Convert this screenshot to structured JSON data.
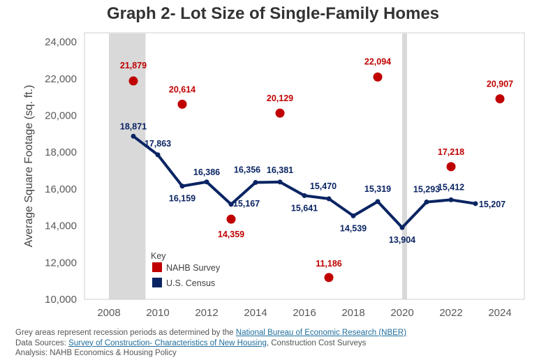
{
  "title": "Graph 2- Lot Size of Single-Family Homes",
  "chart_data": {
    "type": "line",
    "title": "Graph 2- Lot Size of Single-Family Homes",
    "xlabel": "",
    "ylabel": "Average Square Footage (sq. ft.)",
    "xlim": [
      2007,
      2025
    ],
    "ylim": [
      10000,
      24500
    ],
    "x_ticks": [
      "2008",
      "2010",
      "2012",
      "2014",
      "2016",
      "2018",
      "2020",
      "2022",
      "2024"
    ],
    "y_ticks": [
      "10,000",
      "12,000",
      "14,000",
      "16,000",
      "18,000",
      "20,000",
      "22,000",
      "24,000"
    ],
    "recessions": [
      [
        2008.0,
        2009.5
      ],
      [
        2020.0,
        2020.2
      ]
    ],
    "legend_title": "Key",
    "series": [
      {
        "name": "NAHB Survey",
        "kind": "scatter",
        "color": "#c00000",
        "x": [
          2009,
          2011,
          2013,
          2015,
          2017,
          2019,
          2022,
          2024
        ],
        "values": [
          21879,
          20614,
          14359,
          20129,
          11186,
          22094,
          17218,
          20907
        ],
        "labels": [
          "21,879",
          "20,614",
          "14,359",
          "20,129",
          "11,186",
          "22,094",
          "17,218",
          "20,907"
        ]
      },
      {
        "name": "U.S. Census",
        "kind": "line",
        "color": "#0a2463",
        "x": [
          2009,
          2010,
          2011,
          2012,
          2013,
          2014,
          2015,
          2016,
          2017,
          2018,
          2019,
          2020,
          2021,
          2022,
          2023
        ],
        "values": [
          18871,
          17863,
          16159,
          16386,
          15167,
          16356,
          16381,
          15641,
          15470,
          14539,
          15319,
          13904,
          15293,
          15412,
          15207
        ],
        "labels": [
          "18,871",
          "17,863",
          "16,159",
          "16,386",
          "15,167",
          "16,356",
          "16,381",
          "15,641",
          "15,470",
          "14,539",
          "15,319",
          "13,904",
          "15,293",
          "15,412",
          "15,207"
        ]
      }
    ]
  },
  "notes": {
    "line1_prefix": "Grey areas represent recession periods as determined by the ",
    "line1_link": "National Bureau of Economic Research (NBER)",
    "line2_prefix": "Data Sources: ",
    "line2_link": "Survey of Construction- Characteristics of New Housing",
    "line2_suffix": ", Construction Cost Surveys",
    "line3": "Analysis: NAHB Economics & Housing Policy"
  }
}
